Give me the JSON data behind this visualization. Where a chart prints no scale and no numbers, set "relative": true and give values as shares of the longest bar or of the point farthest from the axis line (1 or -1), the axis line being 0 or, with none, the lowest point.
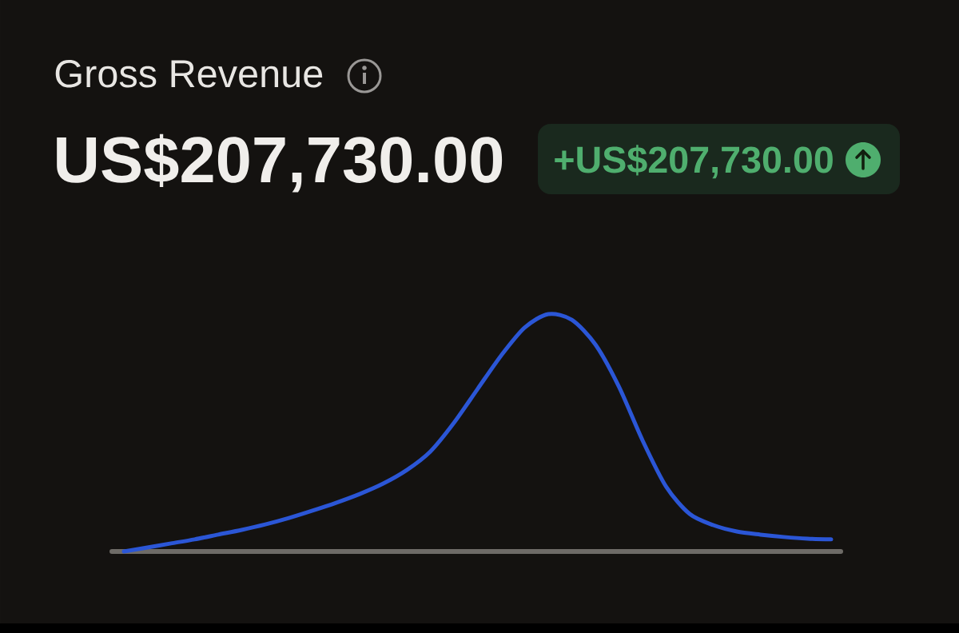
{
  "chart_data": {
    "type": "line",
    "title": "Gross Revenue",
    "subtitle": "US$207,730.00",
    "annotations": [
      "+US$207,730.00"
    ],
    "relative": true,
    "categories": [
      null,
      null,
      null,
      null,
      null,
      null,
      null,
      null,
      null,
      null,
      null,
      null,
      null,
      null,
      null,
      null,
      null,
      null,
      null,
      null,
      null,
      null,
      null,
      null,
      null,
      null,
      null,
      null,
      null,
      null,
      null
    ],
    "values": [
      0,
      0.017,
      0.034,
      0.051,
      0.071,
      0.091,
      0.114,
      0.141,
      0.172,
      0.205,
      0.242,
      0.286,
      0.343,
      0.421,
      0.542,
      0.684,
      0.825,
      0.943,
      1,
      0.976,
      0.872,
      0.694,
      0.468,
      0.273,
      0.158,
      0.111,
      0.084,
      0.071,
      0.061,
      0.054,
      0.051
    ],
    "color": "#2b56d6"
  }
}
